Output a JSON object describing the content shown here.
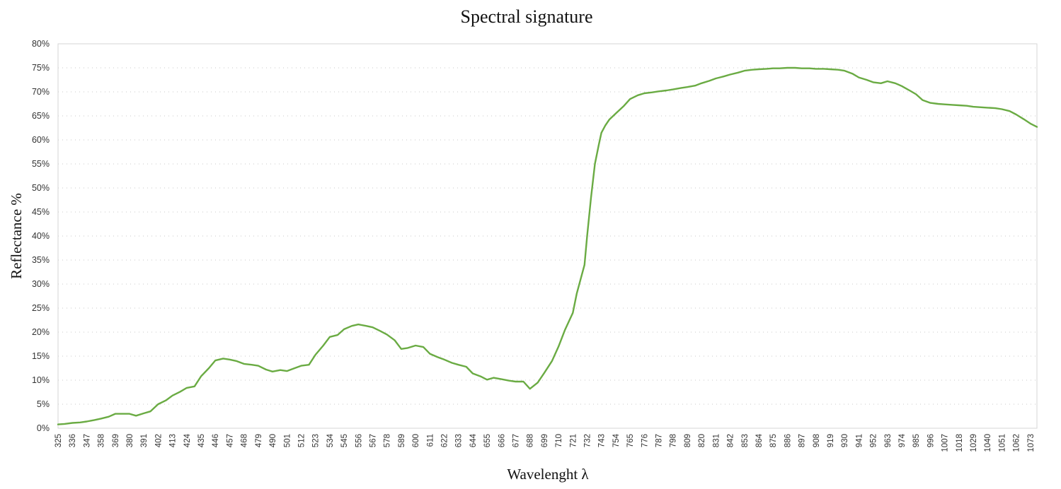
{
  "chart_data": {
    "type": "line",
    "title": "Spectral signature",
    "xlabel": "Wavelenght  λ",
    "ylabel": "Reflectance %",
    "xlim": [
      325,
      1078
    ],
    "ylim": [
      0,
      80
    ],
    "y_ticks": [
      "0%",
      "5%",
      "10%",
      "15%",
      "20%",
      "25%",
      "30%",
      "35%",
      "40%",
      "45%",
      "50%",
      "55%",
      "60%",
      "65%",
      "70%",
      "75%",
      "80%"
    ],
    "x_ticks": [
      325,
      336,
      347,
      358,
      369,
      380,
      391,
      402,
      413,
      424,
      435,
      446,
      457,
      468,
      479,
      490,
      501,
      512,
      523,
      534,
      545,
      556,
      567,
      578,
      589,
      600,
      611,
      622,
      633,
      644,
      655,
      666,
      677,
      688,
      699,
      710,
      721,
      732,
      743,
      754,
      765,
      776,
      787,
      798,
      809,
      820,
      831,
      842,
      853,
      864,
      875,
      886,
      897,
      908,
      919,
      930,
      941,
      952,
      963,
      974,
      985,
      996,
      1007,
      1018,
      1029,
      1040,
      1051,
      1062,
      1073
    ],
    "grid": true,
    "legend": "none",
    "series": [
      {
        "color": "#6aab43",
        "x": [
          325,
          330,
          336,
          342,
          347,
          353,
          358,
          364,
          369,
          375,
          380,
          385,
          391,
          396,
          402,
          408,
          413,
          419,
          424,
          430,
          435,
          441,
          446,
          452,
          457,
          462,
          468,
          474,
          479,
          485,
          490,
          496,
          501,
          507,
          512,
          518,
          523,
          529,
          534,
          540,
          545,
          551,
          556,
          562,
          567,
          573,
          578,
          584,
          589,
          594,
          600,
          606,
          611,
          617,
          622,
          628,
          633,
          639,
          644,
          650,
          655,
          660,
          666,
          672,
          677,
          683,
          688,
          694,
          699,
          705,
          710,
          715,
          721,
          724,
          727,
          730,
          732,
          735,
          738,
          741,
          743,
          746,
          749,
          754,
          760,
          765,
          771,
          776,
          782,
          787,
          793,
          798,
          804,
          809,
          815,
          820,
          826,
          831,
          837,
          842,
          848,
          853,
          859,
          864,
          870,
          875,
          880,
          886,
          892,
          897,
          903,
          908,
          914,
          919,
          925,
          930,
          936,
          941,
          947,
          952,
          958,
          963,
          969,
          974,
          980,
          985,
          990,
          996,
          1002,
          1007,
          1013,
          1018,
          1024,
          1029,
          1035,
          1040,
          1046,
          1051,
          1057,
          1062,
          1068,
          1073,
          1078
        ],
        "y": [
          0.8,
          0.9,
          1.1,
          1.2,
          1.4,
          1.7,
          2.0,
          2.4,
          3.0,
          3.0,
          3.0,
          2.6,
          3.1,
          3.5,
          5.0,
          5.8,
          6.8,
          7.6,
          8.4,
          8.7,
          10.8,
          12.5,
          14.1,
          14.5,
          14.3,
          14.0,
          13.4,
          13.2,
          13.0,
          12.2,
          11.8,
          12.1,
          11.9,
          12.5,
          13.0,
          13.2,
          15.3,
          17.2,
          19.0,
          19.4,
          20.6,
          21.3,
          21.6,
          21.3,
          21.0,
          20.2,
          19.5,
          18.3,
          16.5,
          16.7,
          17.2,
          16.9,
          15.5,
          14.8,
          14.3,
          13.6,
          13.2,
          12.8,
          11.4,
          10.8,
          10.1,
          10.5,
          10.2,
          9.9,
          9.7,
          9.7,
          8.2,
          9.5,
          11.5,
          14.0,
          17.0,
          20.5,
          24.0,
          28.0,
          31.0,
          34.0,
          40.0,
          48.0,
          55.0,
          59.0,
          61.5,
          63.0,
          64.2,
          65.5,
          67.0,
          68.5,
          69.3,
          69.7,
          69.9,
          70.1,
          70.3,
          70.5,
          70.8,
          71.0,
          71.3,
          71.8,
          72.3,
          72.8,
          73.2,
          73.6,
          74.0,
          74.4,
          74.6,
          74.7,
          74.8,
          74.9,
          74.9,
          75.0,
          75.0,
          74.9,
          74.9,
          74.8,
          74.8,
          74.7,
          74.6,
          74.4,
          73.8,
          73.0,
          72.5,
          72.0,
          71.8,
          72.2,
          71.8,
          71.2,
          70.3,
          69.5,
          68.3,
          67.7,
          67.5,
          67.4,
          67.3,
          67.2,
          67.1,
          66.9,
          66.8,
          66.7,
          66.6,
          66.4,
          66.0,
          65.3,
          64.3,
          63.4,
          62.7
        ]
      }
    ]
  }
}
